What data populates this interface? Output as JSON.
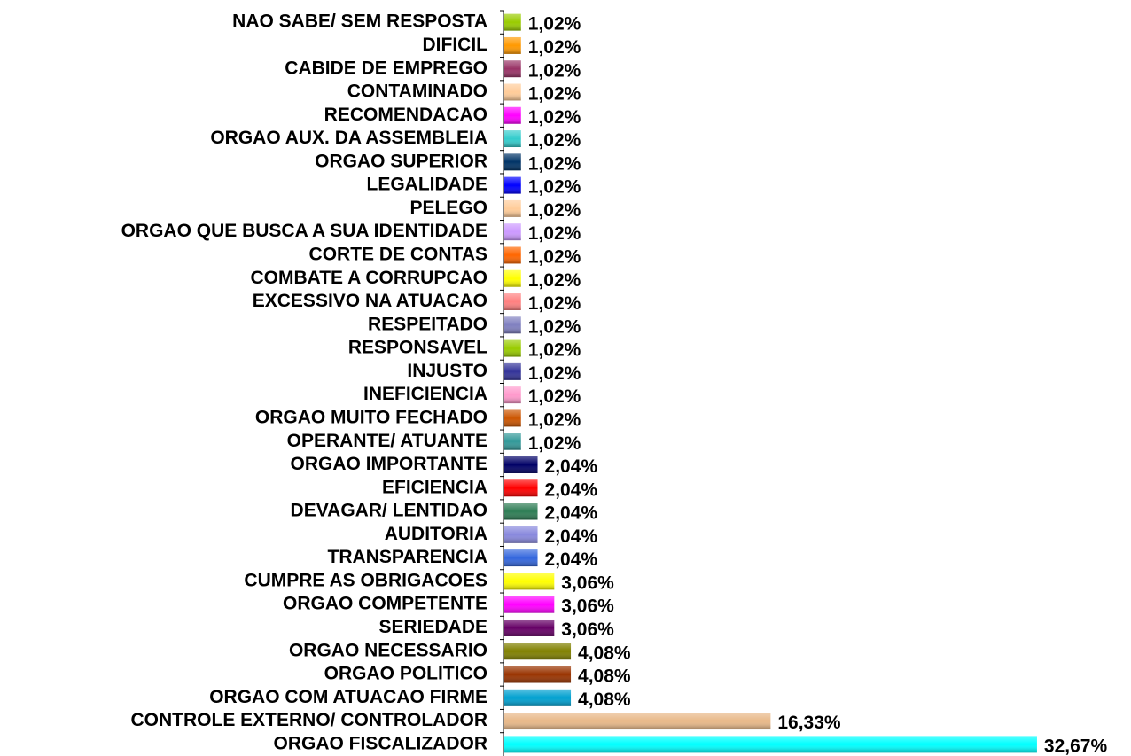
{
  "chart_data": {
    "type": "bar",
    "orientation": "horizontal",
    "categories": [
      "NAO SABE/ SEM RESPOSTA",
      "DIFICIL",
      "CABIDE DE EMPREGO",
      "CONTAMINADO",
      "RECOMENDACAO",
      "ORGAO AUX. DA ASSEMBLEIA",
      "ORGAO SUPERIOR",
      "LEGALIDADE",
      "PELEGO",
      "ORGAO QUE BUSCA A SUA IDENTIDADE",
      "CORTE DE CONTAS",
      "COMBATE A CORRUPCAO",
      "EXCESSIVO NA ATUACAO",
      "RESPEITADO",
      "RESPONSAVEL",
      "INJUSTO",
      "INEFICIENCIA",
      "ORGAO MUITO FECHADO",
      "OPERANTE/ ATUANTE",
      "ORGAO IMPORTANTE",
      "EFICIENCIA",
      "DEVAGAR/ LENTIDAO",
      "AUDITORIA",
      "TRANSPARENCIA",
      "CUMPRE AS OBRIGACOES",
      "ORGAO COMPETENTE",
      "SERIEDADE",
      "ORGAO NECESSARIO",
      "ORGAO POLITICO",
      "ORGAO COM ATUACAO FIRME",
      "CONTROLE EXTERNO/ CONTROLADOR",
      "ORGAO FISCALIZADOR"
    ],
    "values": [
      1.02,
      1.02,
      1.02,
      1.02,
      1.02,
      1.02,
      1.02,
      1.02,
      1.02,
      1.02,
      1.02,
      1.02,
      1.02,
      1.02,
      1.02,
      1.02,
      1.02,
      1.02,
      1.02,
      2.04,
      2.04,
      2.04,
      2.04,
      2.04,
      3.06,
      3.06,
      3.06,
      4.08,
      4.08,
      4.08,
      16.33,
      32.67
    ],
    "value_labels": [
      "1,02%",
      "1,02%",
      "1,02%",
      "1,02%",
      "1,02%",
      "1,02%",
      "1,02%",
      "1,02%",
      "1,02%",
      "1,02%",
      "1,02%",
      "1,02%",
      "1,02%",
      "1,02%",
      "1,02%",
      "1,02%",
      "1,02%",
      "1,02%",
      "1,02%",
      "2,04%",
      "2,04%",
      "2,04%",
      "2,04%",
      "2,04%",
      "3,06%",
      "3,06%",
      "3,06%",
      "4,08%",
      "4,08%",
      "4,08%",
      "16,33%",
      "32,67%"
    ],
    "colors": [
      "#99cc00",
      "#ff9900",
      "#993366",
      "#ffcc99",
      "#ff00ff",
      "#33cccc",
      "#003366",
      "#0000ff",
      "#ffcc99",
      "#cc99ff",
      "#ff6600",
      "#ffff00",
      "#ff8080",
      "#8080c0",
      "#99cc00",
      "#333399",
      "#ff99cc",
      "#cc5500",
      "#339999",
      "#000066",
      "#ff0000",
      "#2e7d55",
      "#8888dd",
      "#3366dd",
      "#ffff00",
      "#ff00ff",
      "#660066",
      "#808000",
      "#993300",
      "#00a0d0",
      "#e8b888",
      "#00ffff"
    ],
    "xlim": [
      0,
      33
    ]
  }
}
